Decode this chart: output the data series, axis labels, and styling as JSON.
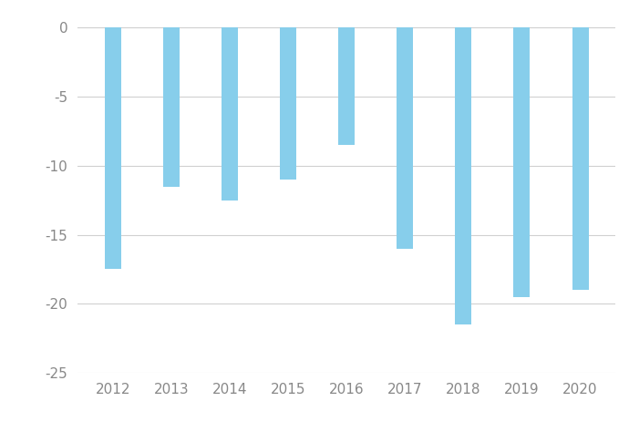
{
  "categories": [
    "2012",
    "2013",
    "2014",
    "2015",
    "2016",
    "2017",
    "2018",
    "2019",
    "2020"
  ],
  "values": [
    -17.5,
    -11.5,
    -12.5,
    -11.0,
    -8.5,
    -16.0,
    -21.5,
    -19.5,
    -19.0
  ],
  "bar_color": "#87CEEB",
  "background_color": "#ffffff",
  "ylim": [
    -25,
    1
  ],
  "yticks": [
    0,
    -5,
    -10,
    -15,
    -20,
    -25
  ],
  "grid_color": "#d0d0d0",
  "bar_width": 0.28,
  "xlabel": "",
  "ylabel": "",
  "tick_color": "#888888",
  "tick_fontsize": 11
}
